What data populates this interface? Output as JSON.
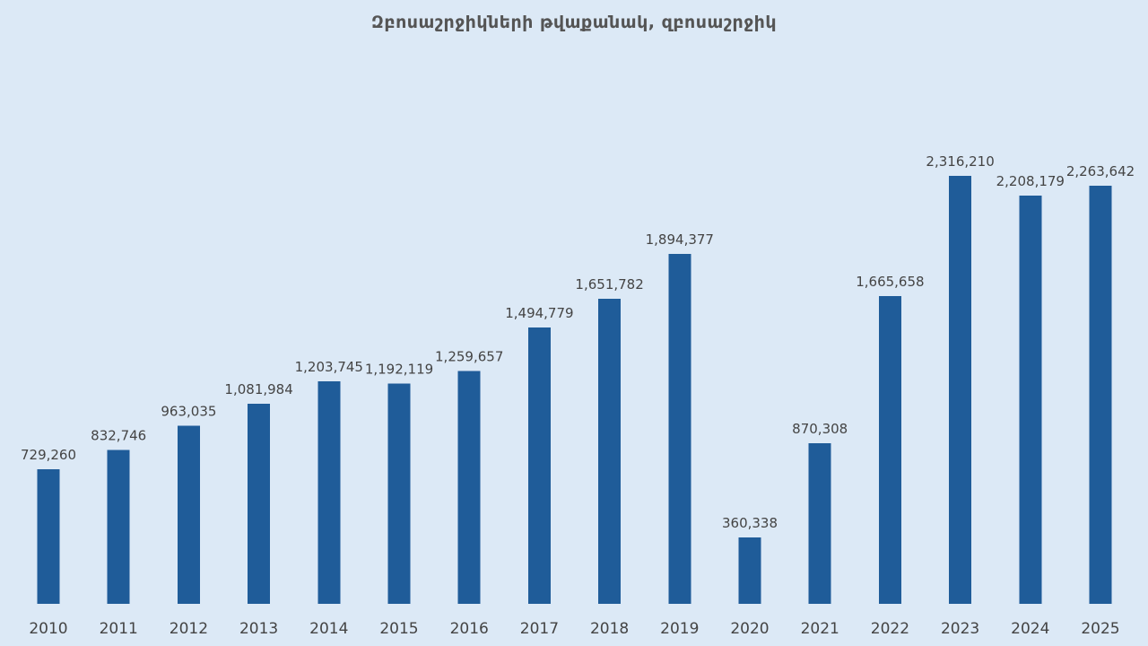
{
  "chart_data": {
    "type": "bar",
    "title": "Զբոսաշրջիկների թվաքանակ, զբոսաշրջիկ",
    "xlabel": "",
    "ylabel": "",
    "categories": [
      "2010",
      "2011",
      "2012",
      "2013",
      "2014",
      "2015",
      "2016",
      "2017",
      "2018",
      "2019",
      "2020",
      "2021",
      "2022",
      "2023",
      "2024",
      "2025"
    ],
    "values": [
      729260,
      832746,
      963035,
      1081984,
      1203745,
      1192119,
      1259657,
      1494779,
      1651782,
      1894377,
      360338,
      870308,
      1665658,
      2316210,
      2208179,
      2263642
    ],
    "value_labels": [
      "729,260",
      "832,746",
      "963,035",
      "1,081,984",
      "1,203,745",
      "1,192,119",
      "1,259,657",
      "1,494,779",
      "1,651,782",
      "1,894,377",
      "360,338",
      "870,308",
      "1,665,658",
      "2,316,210",
      "2,208,179",
      "2,263,642"
    ],
    "highlight_index": 15,
    "ylim": [
      0,
      2316210
    ],
    "grid": false,
    "legend": "none",
    "colors": {
      "bar": "#1f5c99",
      "label": "#444444",
      "highlight_label": "#e8000b",
      "background": "#dce9f6"
    }
  }
}
